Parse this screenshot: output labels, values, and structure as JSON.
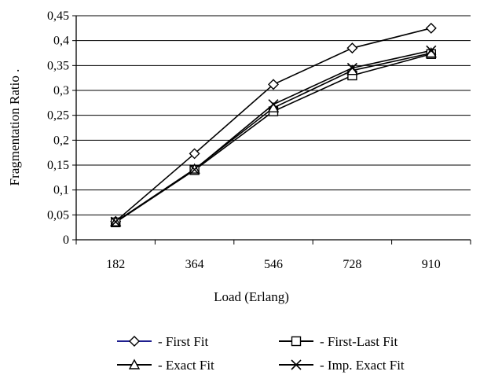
{
  "chart_data": {
    "type": "line",
    "title": "",
    "xlabel": "Load (Erlang)",
    "ylabel": "Fragmentation Ratio  .",
    "categories": [
      "182",
      "364",
      "546",
      "728",
      "910"
    ],
    "ylim": [
      0,
      0.45
    ],
    "yticks": [
      "0",
      "0,05",
      "0,1",
      "0,15",
      "0,2",
      "0,25",
      "0,3",
      "0,35",
      "0,4",
      "0,45"
    ],
    "grid": "horizontal",
    "legend_position": "bottom",
    "series": [
      {
        "name": "- First Fit",
        "marker": "diamond",
        "color": "#000000",
        "legend_line_color": "#1f1f8f",
        "values": [
          0.037,
          0.173,
          0.312,
          0.385,
          0.425
        ]
      },
      {
        "name": "- First-Last Fit",
        "marker": "square",
        "color": "#000000",
        "legend_line_color": "#000000",
        "values": [
          0.035,
          0.14,
          0.258,
          0.33,
          0.373
        ]
      },
      {
        "name": "- Exact Fit",
        "marker": "triangle",
        "color": "#000000",
        "legend_line_color": "#000000",
        "values": [
          0.036,
          0.142,
          0.265,
          0.34,
          0.375
        ]
      },
      {
        "name": "- Imp. Exact Fit",
        "marker": "x",
        "color": "#000000",
        "legend_line_color": "#000000",
        "values": [
          0.036,
          0.141,
          0.272,
          0.345,
          0.38
        ]
      }
    ]
  }
}
